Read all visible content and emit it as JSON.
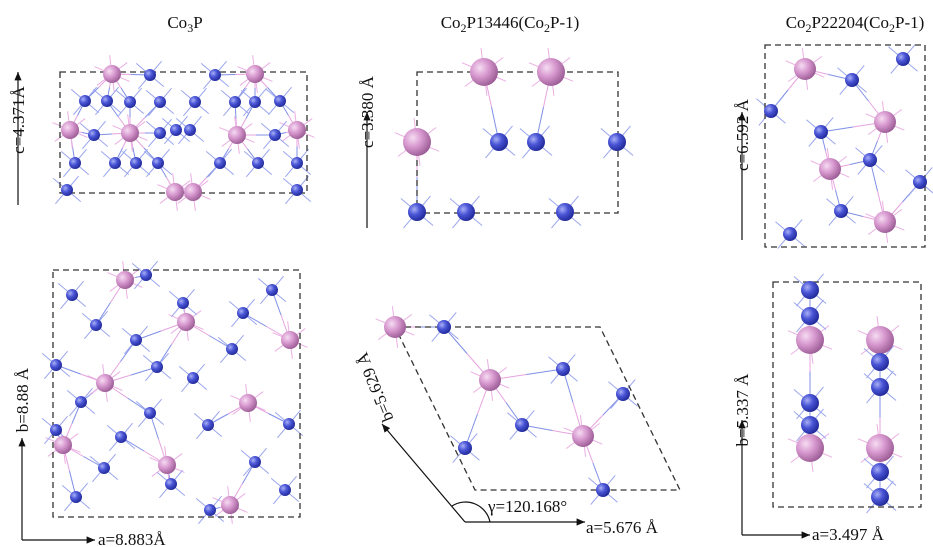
{
  "panels": [
    {
      "title": [
        "Co",
        "3",
        "P"
      ],
      "top_axis": "c=4.371Å",
      "bottom_vertical_axis": "b=8.88 Å",
      "bottom_horizontal_axis": "a=8.883Å"
    },
    {
      "title": [
        "Co",
        "2",
        "P13446(Co",
        "2",
        "P-1)"
      ],
      "top_axis": "c=3.380 Å",
      "bottom_vertical_axis": "b=5.629 Å",
      "bottom_horizontal_axis": "a=5.676 Å",
      "angle": "γ=120.168°"
    },
    {
      "title": [
        "Co",
        "2",
        "P22204(Co",
        "2",
        "P-1)"
      ],
      "top_axis": "c=6.592 Å",
      "bottom_vertical_axis": "b=5.337 Å",
      "bottom_horizontal_axis": "a=3.497 Å"
    }
  ]
}
